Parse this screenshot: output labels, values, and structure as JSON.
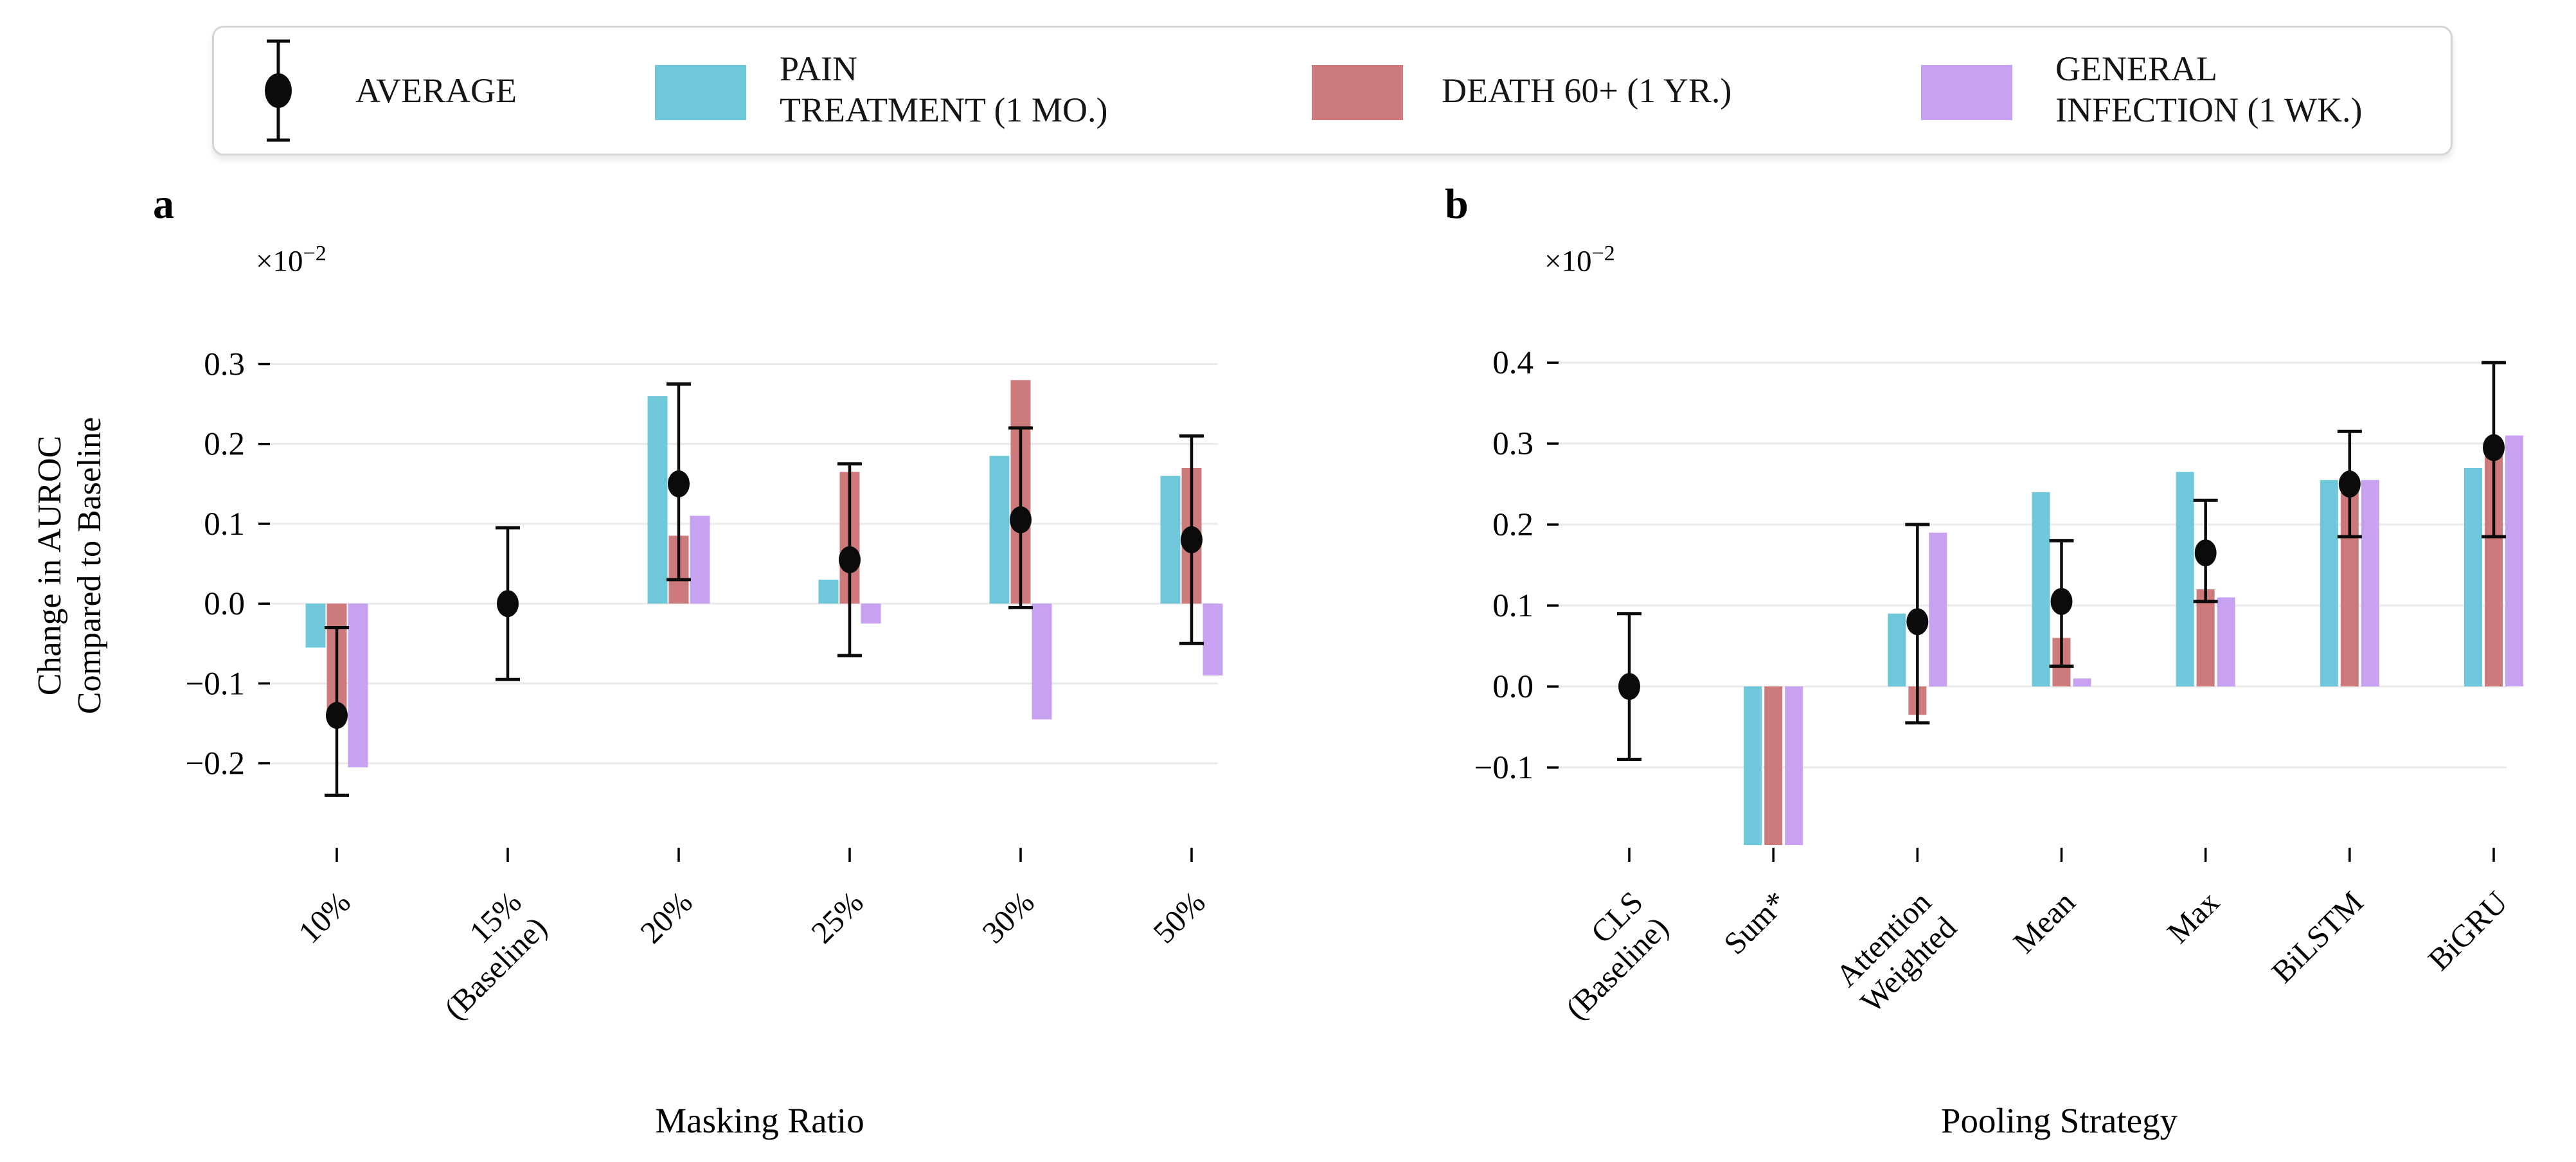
{
  "legend": {
    "average_label": "AVERAGE",
    "average_marker": "dot-with-error-bar-icon",
    "items": [
      {
        "label_lines": [
          "PAIN",
          "TREATMENT (1 MO.)"
        ],
        "color": "#6fc8d9"
      },
      {
        "label_lines": [
          "DEATH 60+ (1 YR.)"
        ],
        "color": "#cd7a7c"
      },
      {
        "label_lines": [
          "GENERAL",
          "INFECTION (1 WK.)"
        ],
        "color": "#c7a2f0"
      }
    ]
  },
  "y_axis": {
    "label_line1": "Change in AUROC",
    "label_line2": "Compared to Baseline",
    "scale_prefix": "×10",
    "scale_exponent": "−2"
  },
  "panel_letters": {
    "a": "a",
    "b": "b"
  },
  "axis_titles": {
    "a": "Masking Ratio",
    "b": "Pooling Strategy"
  },
  "colors": {
    "pain_treatment": "#6fc8d9",
    "death_60": "#cd7a7c",
    "general_infection": "#c7a2f0",
    "average": "#0b0b0b",
    "gridline": "#eaeaea"
  },
  "chart_data": [
    {
      "type": "bar",
      "panel": "a",
      "title": "",
      "xlabel": "Masking Ratio",
      "ylabel": "Change in AUROC Compared to Baseline (×10⁻²)",
      "categories": [
        "10%",
        "15%\n(Baseline)",
        "20%",
        "25%",
        "30%",
        "50%"
      ],
      "yticks": [
        0.3,
        0.2,
        0.1,
        0.0,
        -0.1,
        -0.2
      ],
      "ylim": [
        -0.3025,
        0.3495
      ],
      "grid": true,
      "legend_position": "top",
      "series": [
        {
          "name": "PAIN TREATMENT (1 MO.)",
          "color": "#6fc8d9",
          "values": [
            -0.055,
            null,
            0.26,
            0.03,
            0.185,
            0.16
          ]
        },
        {
          "name": "DEATH 60+ (1 YR.)",
          "color": "#cd7a7c",
          "values": [
            -0.14,
            null,
            0.085,
            0.165,
            0.28,
            0.17
          ]
        },
        {
          "name": "GENERAL INFECTION (1 WK.)",
          "color": "#c7a2f0",
          "values": [
            -0.205,
            null,
            0.11,
            -0.025,
            -0.145,
            -0.09
          ]
        }
      ],
      "average": {
        "values": [
          -0.14,
          0.0,
          0.15,
          0.055,
          0.105,
          0.08
        ],
        "err_low": [
          -0.24,
          -0.095,
          0.03,
          -0.065,
          -0.005,
          -0.05
        ],
        "err_high": [
          -0.03,
          0.095,
          0.275,
          0.175,
          0.22,
          0.21
        ]
      }
    },
    {
      "type": "bar",
      "panel": "b",
      "title": "",
      "xlabel": "Pooling Strategy",
      "ylabel": "Change in AUROC Compared to Baseline (×10⁻²)",
      "categories": [
        "CLS\n(Baseline)",
        "Sum*",
        "Attention\nWeighted",
        "Mean",
        "Max",
        "BiLSTM",
        "BiGRU"
      ],
      "yticks": [
        0.4,
        0.3,
        0.2,
        0.1,
        0.0,
        -0.1
      ],
      "ylim": [
        -0.196,
        0.447
      ],
      "grid": true,
      "legend_position": "top",
      "note": "Sum* bars are clipped below the visible axis range",
      "series": [
        {
          "name": "PAIN TREATMENT (1 MO.)",
          "color": "#6fc8d9",
          "values": [
            null,
            -0.21,
            0.09,
            0.24,
            0.265,
            0.255,
            0.27
          ],
          "clipped": [
            false,
            true,
            false,
            false,
            false,
            false,
            false
          ]
        },
        {
          "name": "DEATH 60+ (1 YR.)",
          "color": "#cd7a7c",
          "values": [
            null,
            -0.21,
            -0.035,
            0.06,
            0.12,
            0.245,
            0.285
          ],
          "clipped": [
            false,
            true,
            false,
            false,
            false,
            false,
            false
          ]
        },
        {
          "name": "GENERAL INFECTION (1 WK.)",
          "color": "#c7a2f0",
          "values": [
            null,
            -0.21,
            0.19,
            0.01,
            0.11,
            0.255,
            0.31
          ],
          "clipped": [
            false,
            true,
            false,
            false,
            false,
            false,
            false
          ]
        }
      ],
      "average": {
        "values": [
          0.0,
          null,
          0.08,
          0.105,
          0.165,
          0.25,
          0.295
        ],
        "err_low": [
          -0.09,
          null,
          -0.045,
          0.025,
          0.105,
          0.185,
          0.185
        ],
        "err_high": [
          0.09,
          null,
          0.2,
          0.18,
          0.23,
          0.315,
          0.4
        ]
      }
    }
  ]
}
